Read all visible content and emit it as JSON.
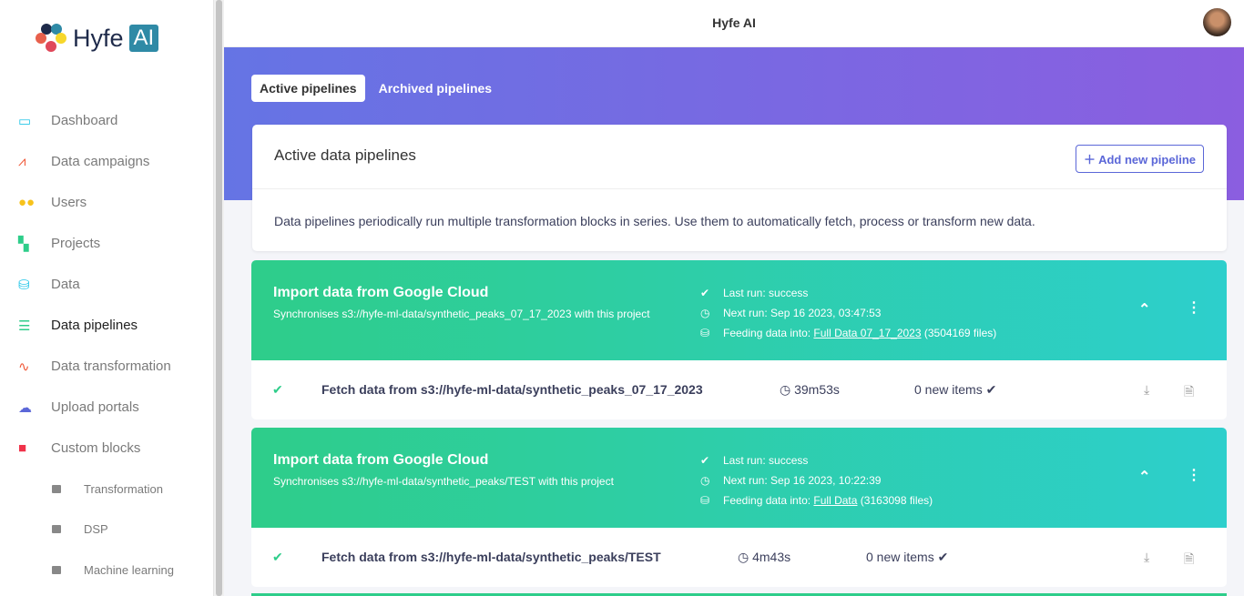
{
  "app": {
    "title": "Hyfe AI",
    "logo_text": "Hyfe",
    "logo_badge": "AI"
  },
  "sidebar": {
    "items": [
      {
        "label": "Dashboard",
        "icon": "monitor-icon",
        "color": "#26c6e8"
      },
      {
        "label": "Data campaigns",
        "icon": "chart-line-icon",
        "color": "#f05a3a"
      },
      {
        "label": "Users",
        "icon": "users-icon",
        "color": "#f7c21b"
      },
      {
        "label": "Projects",
        "icon": "project-tree-icon",
        "color": "#2ecd8a"
      },
      {
        "label": "Data",
        "icon": "database-icon",
        "color": "#26c6e8"
      },
      {
        "label": "Data pipelines",
        "icon": "list-icon",
        "color": "#2ecd8a",
        "active": true
      },
      {
        "label": "Data transformation",
        "icon": "pulse-icon",
        "color": "#f05a3a"
      },
      {
        "label": "Upload portals",
        "icon": "cloud-upload-icon",
        "color": "#5b67d8"
      },
      {
        "label": "Custom blocks",
        "icon": "cube-icon",
        "color": "#f0324a"
      }
    ],
    "subitems": [
      {
        "label": "Transformation"
      },
      {
        "label": "DSP"
      },
      {
        "label": "Machine learning"
      }
    ]
  },
  "tabs": [
    {
      "label": "Active pipelines",
      "active": true
    },
    {
      "label": "Archived pipelines"
    }
  ],
  "card": {
    "title": "Active data pipelines",
    "add_label": "Add new pipeline",
    "description": "Data pipelines periodically run multiple transformation blocks in series. Use them to automatically fetch, process or transform new data."
  },
  "pipelines": [
    {
      "title": "Import data from Google Cloud",
      "subtitle": "Synchronises s3://hyfe-ml-data/synthetic_peaks_07_17_2023 with this project",
      "last_run": "Last run: success",
      "next_run": "Next run: Sep 16 2023, 03:47:53",
      "feeding_prefix": "Feeding data into:",
      "feeding_link": "Full Data 07_17_2023",
      "feeding_count": "(3504169 files)",
      "step": "Fetch data from s3://hyfe-ml-data/synthetic_peaks_07_17_2023",
      "duration": "39m53s",
      "items": "0 new items ✔"
    },
    {
      "title": "Import data from Google Cloud",
      "subtitle": "Synchronises s3://hyfe-ml-data/synthetic_peaks/TEST with this project",
      "last_run": "Last run: success",
      "next_run": "Next run: Sep 16 2023, 10:22:39",
      "feeding_prefix": "Feeding data into:",
      "feeding_link": "Full Data",
      "feeding_count": "(3163098 files)",
      "step": "Fetch data from s3://hyfe-ml-data/synthetic_peaks/TEST",
      "duration": "4m43s",
      "items": "0 new items ✔"
    }
  ]
}
